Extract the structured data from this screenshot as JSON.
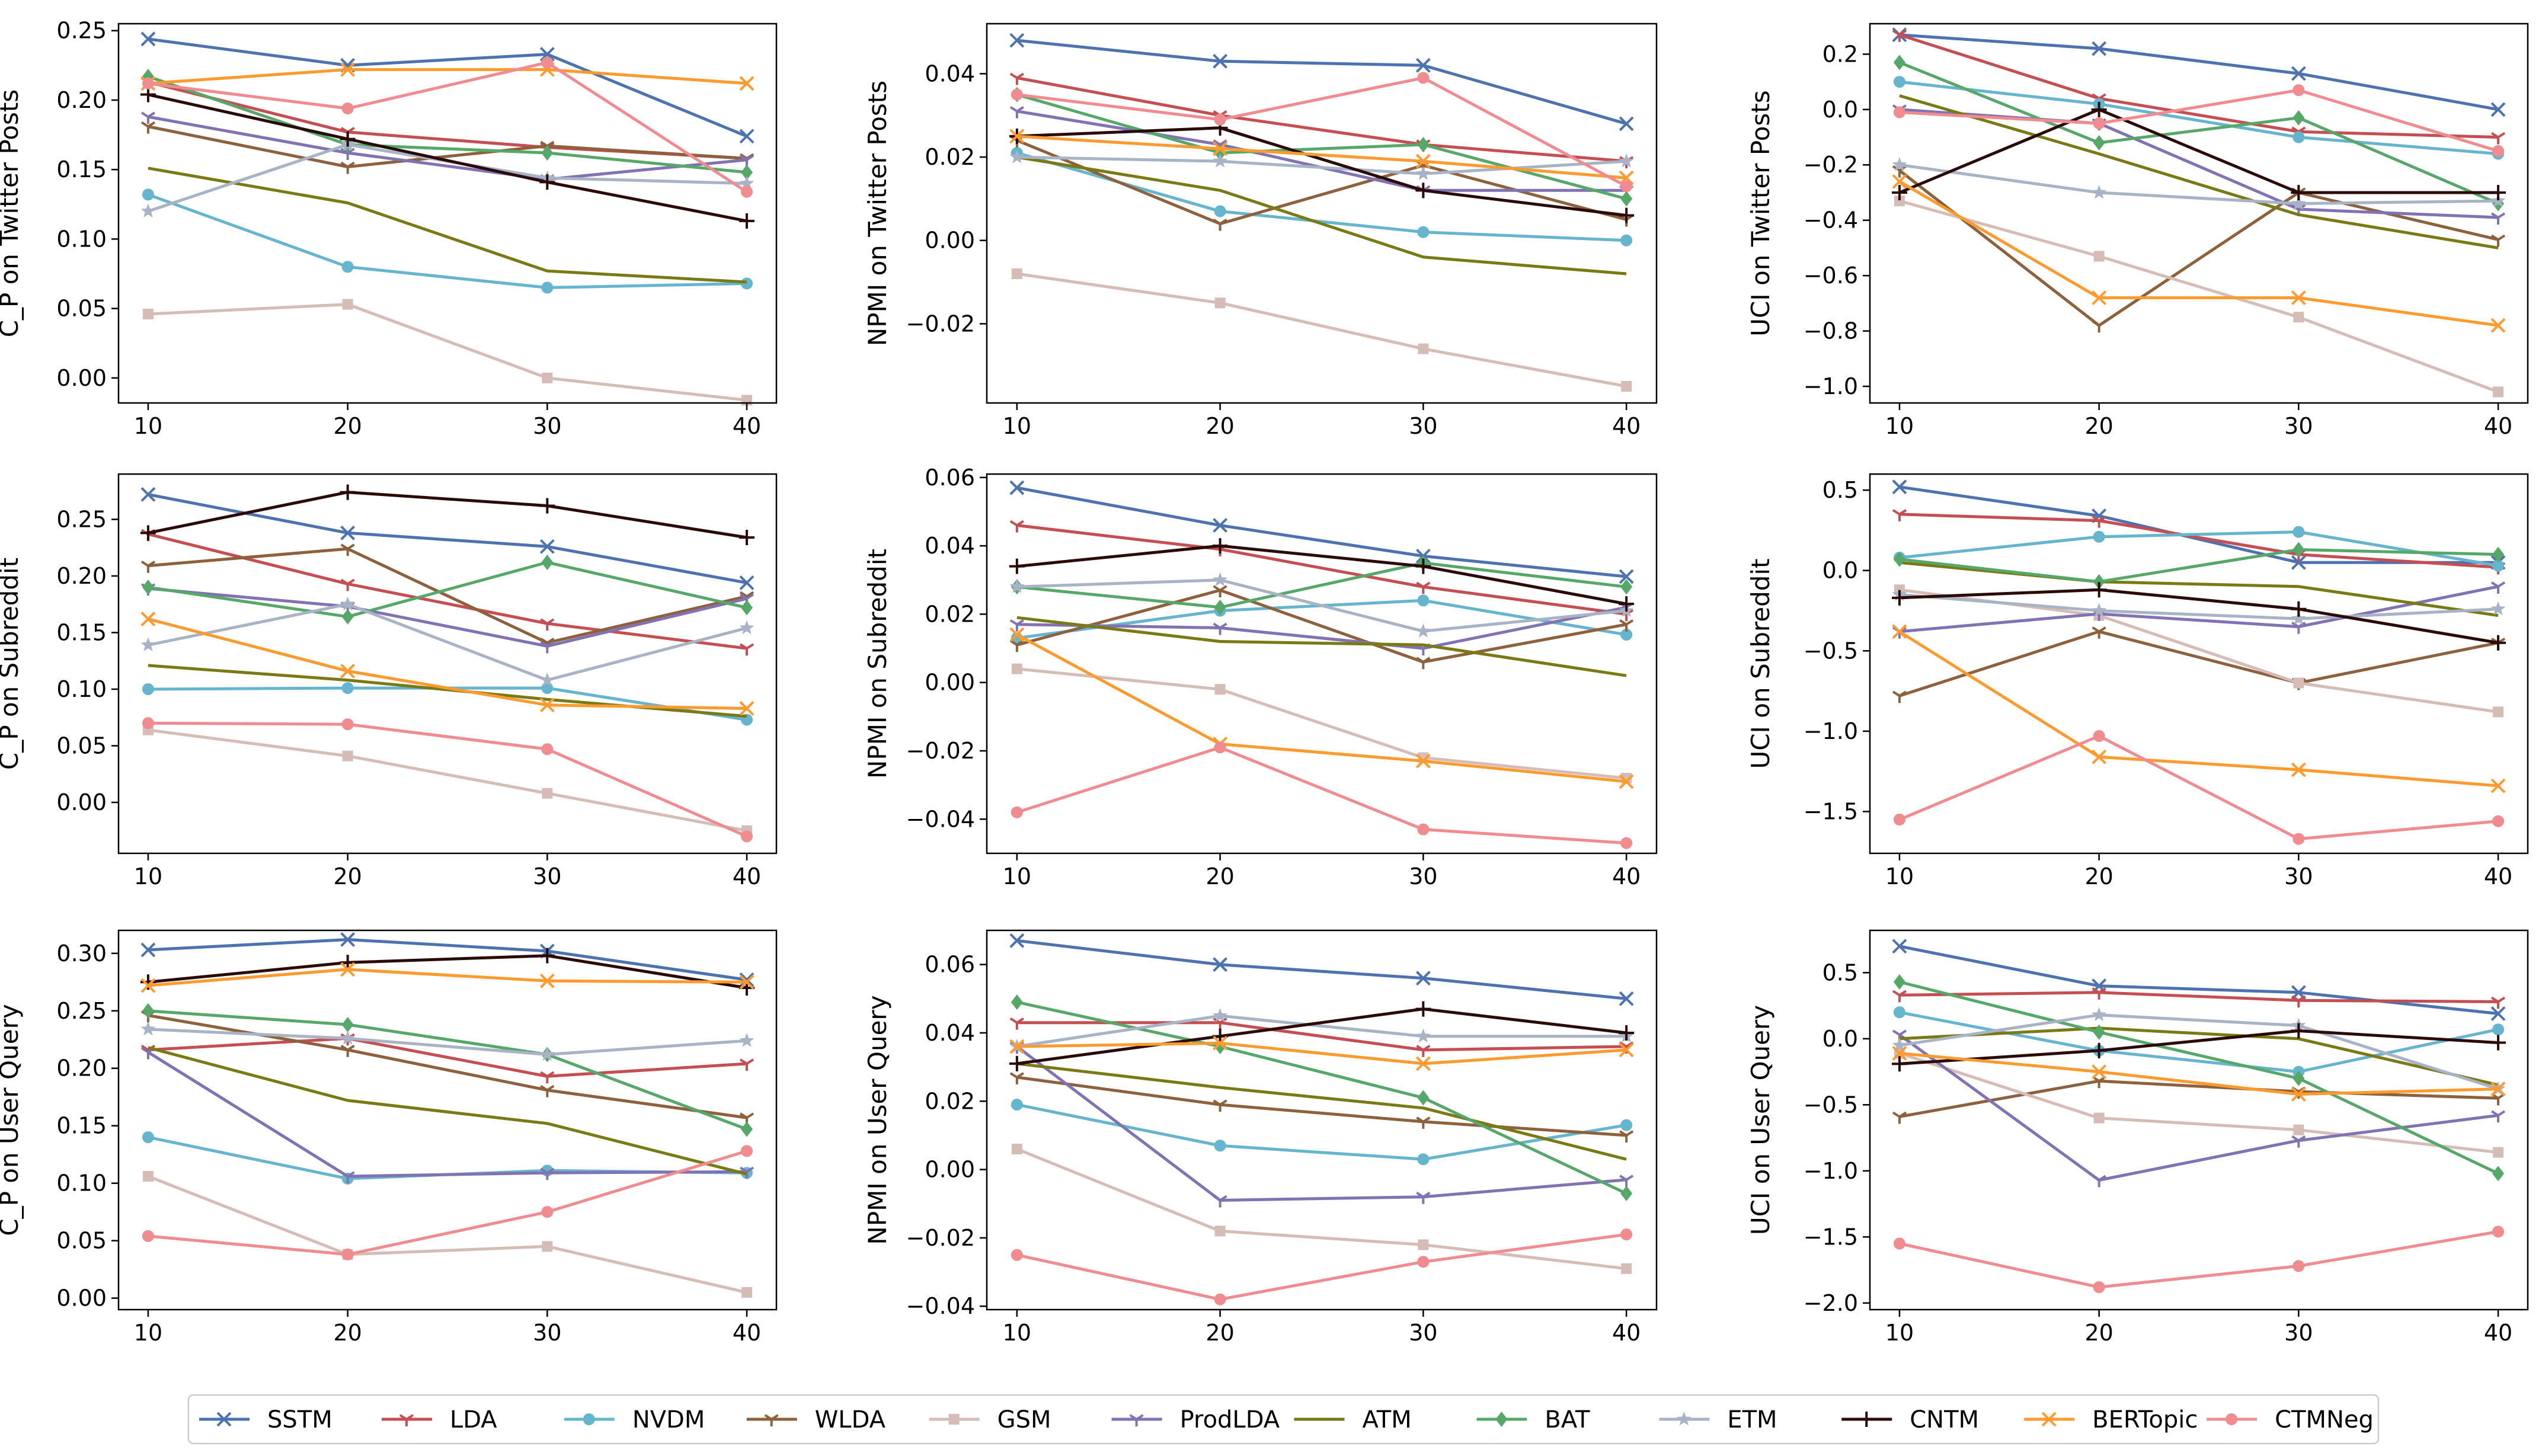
{
  "chart_data": {
    "type": "line",
    "x": [
      10,
      20,
      30,
      40
    ],
    "methods": [
      {
        "name": "SSTM",
        "color": "#4c72b0",
        "marker": "x"
      },
      {
        "name": "LDA",
        "color": "#c44e52",
        "marker": "tri"
      },
      {
        "name": "NVDM",
        "color": "#64b5cd",
        "marker": "circle"
      },
      {
        "name": "WLDA",
        "color": "#8c613c",
        "marker": "tri"
      },
      {
        "name": "GSM",
        "color": "#d6bcb6",
        "marker": "square"
      },
      {
        "name": "ProdLDA",
        "color": "#8172b3",
        "marker": "tri"
      },
      {
        "name": "ATM",
        "color": "#7a7a14",
        "marker": "none"
      },
      {
        "name": "BAT",
        "color": "#55a868",
        "marker": "diamond"
      },
      {
        "name": "ETM",
        "color": "#a8b3c6",
        "marker": "star"
      },
      {
        "name": "CNTM",
        "color": "#2b0a0a",
        "marker": "plus"
      },
      {
        "name": "BERTopic",
        "color": "#ff9a2e",
        "marker": "x"
      },
      {
        "name": "CTMNeg",
        "color": "#f08c8f",
        "marker": "circle"
      }
    ],
    "panels": [
      {
        "ylabel": "C_P on Twitter Posts",
        "ylim": [
          -0.018,
          0.255
        ],
        "yticks": [
          0.0,
          0.05,
          0.1,
          0.15,
          0.2,
          0.25
        ],
        "ytick_labels": [
          "0.00",
          "0.05",
          "0.10",
          "0.15",
          "0.20",
          "0.25"
        ],
        "series": [
          [
            0.244,
            0.225,
            0.233,
            0.174
          ],
          [
            0.213,
            0.177,
            0.166,
            0.158
          ],
          [
            0.132,
            0.08,
            0.065,
            0.068
          ],
          [
            0.181,
            0.152,
            0.167,
            0.158
          ],
          [
            0.046,
            0.053,
            0.0,
            -0.016
          ],
          [
            0.188,
            0.162,
            0.143,
            0.157
          ],
          [
            0.151,
            0.126,
            0.077,
            0.069
          ],
          [
            0.217,
            0.168,
            0.162,
            0.148
          ],
          [
            0.12,
            0.168,
            0.144,
            0.14
          ],
          [
            0.204,
            0.172,
            0.141,
            0.113
          ],
          [
            0.212,
            0.222,
            0.222,
            0.212
          ],
          [
            0.212,
            0.194,
            0.227,
            0.134
          ]
        ]
      },
      {
        "ylabel": "NPMI on Twitter Posts",
        "ylim": [
          -0.039,
          0.052
        ],
        "yticks": [
          -0.02,
          0.0,
          0.02,
          0.04
        ],
        "ytick_labels": [
          "−0.02",
          "0.00",
          "0.02",
          "0.04"
        ],
        "series": [
          [
            0.048,
            0.043,
            0.042,
            0.028
          ],
          [
            0.039,
            0.03,
            0.023,
            0.019
          ],
          [
            0.021,
            0.007,
            0.002,
            0.0
          ],
          [
            0.024,
            0.004,
            0.018,
            0.005
          ],
          [
            -0.008,
            -0.015,
            -0.026,
            -0.035
          ],
          [
            0.031,
            0.023,
            0.012,
            0.012
          ],
          [
            0.02,
            0.012,
            -0.004,
            -0.008
          ],
          [
            0.035,
            0.021,
            0.023,
            0.01
          ],
          [
            0.02,
            0.019,
            0.016,
            0.019
          ],
          [
            0.025,
            0.027,
            0.012,
            0.006
          ],
          [
            0.025,
            0.022,
            0.019,
            0.015
          ],
          [
            0.035,
            0.029,
            0.039,
            0.013
          ]
        ]
      },
      {
        "ylabel": "UCI on Twitter Posts",
        "ylim": [
          -1.06,
          0.31
        ],
        "yticks": [
          -1.0,
          -0.8,
          -0.6,
          -0.4,
          -0.2,
          0.0,
          0.2
        ],
        "ytick_labels": [
          "−1.0",
          "−0.8",
          "−0.6",
          "−0.4",
          "−0.2",
          "0.0",
          "0.2"
        ],
        "series": [
          [
            0.27,
            0.22,
            0.13,
            0.0
          ],
          [
            0.27,
            0.04,
            -0.08,
            -0.1
          ],
          [
            0.1,
            0.02,
            -0.1,
            -0.16
          ],
          [
            -0.22,
            -0.78,
            -0.3,
            -0.47
          ],
          [
            -0.33,
            -0.53,
            -0.75,
            -1.02
          ],
          [
            0.0,
            -0.05,
            -0.36,
            -0.39
          ],
          [
            0.05,
            -0.16,
            -0.38,
            -0.5
          ],
          [
            0.17,
            -0.12,
            -0.03,
            -0.34
          ],
          [
            -0.2,
            -0.3,
            -0.34,
            -0.33
          ],
          [
            -0.3,
            0.0,
            -0.3,
            -0.3
          ],
          [
            -0.26,
            -0.68,
            -0.68,
            -0.78
          ],
          [
            -0.01,
            -0.05,
            0.07,
            -0.15
          ]
        ]
      },
      {
        "ylabel": "C_P on Subreddit",
        "ylim": [
          -0.045,
          0.29
        ],
        "yticks": [
          0.0,
          0.05,
          0.1,
          0.15,
          0.2,
          0.25
        ],
        "ytick_labels": [
          "0.00",
          "0.05",
          "0.10",
          "0.15",
          "0.20",
          "0.25"
        ],
        "series": [
          [
            0.272,
            0.238,
            0.226,
            0.194
          ],
          [
            0.237,
            0.193,
            0.158,
            0.136
          ],
          [
            0.1,
            0.101,
            0.101,
            0.073
          ],
          [
            0.209,
            0.224,
            0.141,
            0.182
          ],
          [
            0.064,
            0.041,
            0.008,
            -0.025
          ],
          [
            0.189,
            0.173,
            0.138,
            0.18
          ],
          [
            0.121,
            0.108,
            0.091,
            0.076
          ],
          [
            0.19,
            0.164,
            0.212,
            0.172
          ],
          [
            0.139,
            0.175,
            0.108,
            0.154
          ],
          [
            0.238,
            0.274,
            0.262,
            0.234
          ],
          [
            0.162,
            0.116,
            0.086,
            0.083
          ],
          [
            0.07,
            0.069,
            0.047,
            -0.03
          ]
        ]
      },
      {
        "ylabel": "NPMI on Subreddit",
        "ylim": [
          -0.05,
          0.061
        ],
        "yticks": [
          -0.04,
          -0.02,
          0.0,
          0.02,
          0.04,
          0.06
        ],
        "ytick_labels": [
          "−0.04",
          "−0.02",
          "0.00",
          "0.02",
          "0.04",
          "0.06"
        ],
        "series": [
          [
            0.057,
            0.046,
            0.037,
            0.031
          ],
          [
            0.046,
            0.039,
            0.028,
            0.02
          ],
          [
            0.013,
            0.021,
            0.024,
            0.014
          ],
          [
            0.011,
            0.027,
            0.006,
            0.017
          ],
          [
            0.004,
            -0.002,
            -0.022,
            -0.028
          ],
          [
            0.017,
            0.016,
            0.01,
            0.022
          ],
          [
            0.019,
            0.012,
            0.011,
            0.002
          ],
          [
            0.028,
            0.022,
            0.035,
            0.028
          ],
          [
            0.028,
            0.03,
            0.015,
            0.021
          ],
          [
            0.034,
            0.04,
            0.034,
            0.023
          ],
          [
            0.014,
            -0.018,
            -0.023,
            -0.029
          ],
          [
            -0.038,
            -0.019,
            -0.043,
            -0.047
          ]
        ]
      },
      {
        "ylabel": "UCI on Subreddit",
        "ylim": [
          -1.76,
          0.6
        ],
        "yticks": [
          -1.5,
          -1.0,
          -0.5,
          0.0,
          0.5
        ],
        "ytick_labels": [
          "−1.5",
          "−1.0",
          "−0.5",
          "0.0",
          "0.5"
        ],
        "series": [
          [
            0.52,
            0.34,
            0.05,
            0.05
          ],
          [
            0.35,
            0.31,
            0.1,
            0.02
          ],
          [
            0.08,
            0.21,
            0.24,
            0.03
          ],
          [
            -0.78,
            -0.38,
            -0.7,
            -0.45
          ],
          [
            -0.12,
            -0.28,
            -0.7,
            -0.88
          ],
          [
            -0.38,
            -0.27,
            -0.35,
            -0.1
          ],
          [
            0.05,
            -0.07,
            -0.1,
            -0.28
          ],
          [
            0.07,
            -0.07,
            0.13,
            0.1
          ],
          [
            -0.15,
            -0.25,
            -0.3,
            -0.24
          ],
          [
            -0.17,
            -0.12,
            -0.24,
            -0.45
          ],
          [
            -0.38,
            -1.16,
            -1.24,
            -1.34
          ],
          [
            -1.55,
            -1.03,
            -1.67,
            -1.56
          ]
        ]
      },
      {
        "ylabel": "C_P on User Query",
        "ylim": [
          -0.01,
          0.32
        ],
        "yticks": [
          0.0,
          0.05,
          0.1,
          0.15,
          0.2,
          0.25,
          0.3
        ],
        "ytick_labels": [
          "0.00",
          "0.05",
          "0.10",
          "0.15",
          "0.20",
          "0.25",
          "0.30"
        ],
        "series": [
          [
            0.303,
            0.312,
            0.302,
            0.277
          ],
          [
            0.216,
            0.226,
            0.193,
            0.204
          ],
          [
            0.14,
            0.104,
            0.111,
            0.109
          ],
          [
            0.246,
            0.216,
            0.181,
            0.157
          ],
          [
            0.106,
            0.038,
            0.045,
            0.005
          ],
          [
            0.214,
            0.106,
            0.109,
            0.11
          ],
          [
            0.218,
            0.172,
            0.152,
            0.108
          ],
          [
            0.25,
            0.238,
            0.212,
            0.147
          ],
          [
            0.234,
            0.226,
            0.212,
            0.224
          ],
          [
            0.275,
            0.292,
            0.298,
            0.27
          ],
          [
            0.272,
            0.286,
            0.276,
            0.275
          ],
          [
            0.054,
            0.038,
            0.075,
            0.128
          ]
        ]
      },
      {
        "ylabel": "NPMI on User Query",
        "ylim": [
          -0.041,
          0.07
        ],
        "yticks": [
          -0.04,
          -0.02,
          0.0,
          0.02,
          0.04,
          0.06
        ],
        "ytick_labels": [
          "−0.04",
          "−0.02",
          "0.00",
          "0.02",
          "0.04",
          "0.06"
        ],
        "series": [
          [
            0.067,
            0.06,
            0.056,
            0.05
          ],
          [
            0.043,
            0.043,
            0.035,
            0.036
          ],
          [
            0.019,
            0.007,
            0.003,
            0.013
          ],
          [
            0.027,
            0.019,
            0.014,
            0.01
          ],
          [
            0.006,
            -0.018,
            -0.022,
            -0.029
          ],
          [
            0.036,
            -0.009,
            -0.008,
            -0.003
          ],
          [
            0.031,
            0.024,
            0.018,
            0.003
          ],
          [
            0.049,
            0.036,
            0.021,
            -0.007
          ],
          [
            0.036,
            0.045,
            0.039,
            0.039
          ],
          [
            0.031,
            0.039,
            0.047,
            0.04
          ],
          [
            0.036,
            0.037,
            0.031,
            0.035
          ],
          [
            -0.025,
            -0.038,
            -0.027,
            -0.019
          ]
        ]
      },
      {
        "ylabel": "UCI on User Query",
        "ylim": [
          -2.05,
          0.82
        ],
        "yticks": [
          -2.0,
          -1.5,
          -1.0,
          -0.5,
          0.0,
          0.5
        ],
        "ytick_labels": [
          "−2.0",
          "−1.5",
          "−1.0",
          "−0.5",
          "0.0",
          "0.5"
        ],
        "series": [
          [
            0.7,
            0.4,
            0.35,
            0.19
          ],
          [
            0.33,
            0.35,
            0.29,
            0.28
          ],
          [
            0.2,
            -0.09,
            -0.25,
            0.07
          ],
          [
            -0.59,
            -0.32,
            -0.4,
            -0.45
          ],
          [
            -0.11,
            -0.6,
            -0.69,
            -0.86
          ],
          [
            0.03,
            -1.07,
            -0.77,
            -0.58
          ],
          [
            0.0,
            0.08,
            0.0,
            -0.35
          ],
          [
            0.43,
            0.05,
            -0.3,
            -1.02
          ],
          [
            -0.05,
            0.18,
            0.1,
            -0.38
          ],
          [
            -0.19,
            -0.09,
            0.06,
            -0.03
          ],
          [
            -0.11,
            -0.25,
            -0.42,
            -0.38
          ],
          [
            -1.55,
            -1.88,
            -1.72,
            -1.46
          ]
        ]
      }
    ]
  }
}
